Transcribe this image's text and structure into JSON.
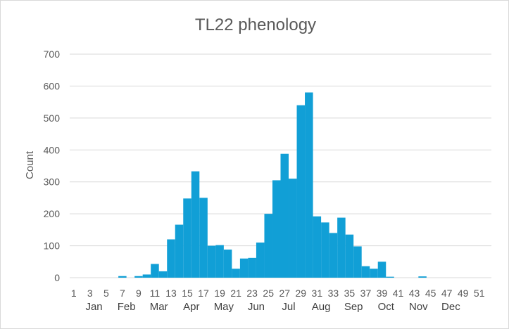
{
  "chart_data": {
    "type": "bar",
    "title": "TL22 phenology",
    "xlabel": "",
    "ylabel": "Count",
    "ylim": [
      0,
      700
    ],
    "yticks": [
      0,
      100,
      200,
      300,
      400,
      500,
      600,
      700
    ],
    "grid": true,
    "legend": "none",
    "bar_color": "#119fd6",
    "x_tick_labels": [
      "1",
      "3",
      "5",
      "7",
      "9",
      "11",
      "13",
      "15",
      "17",
      "19",
      "21",
      "23",
      "25",
      "27",
      "29",
      "31",
      "33",
      "35",
      "37",
      "39",
      "41",
      "43",
      "45",
      "47",
      "49",
      "51"
    ],
    "month_labels": [
      "Jan",
      "Feb",
      "Mar",
      "Apr",
      "May",
      "Jun",
      "Jul",
      "Aug",
      "Sep",
      "Oct",
      "Nov",
      "Dec"
    ],
    "categories": [
      1,
      2,
      3,
      4,
      5,
      6,
      7,
      8,
      9,
      10,
      11,
      12,
      13,
      14,
      15,
      16,
      17,
      18,
      19,
      20,
      21,
      22,
      23,
      24,
      25,
      26,
      27,
      28,
      29,
      30,
      31,
      32,
      33,
      34,
      35,
      36,
      37,
      38,
      39,
      40,
      41,
      42,
      43,
      44,
      45,
      46,
      47,
      48,
      49,
      50,
      51,
      52
    ],
    "values": [
      0,
      0,
      0,
      0,
      0,
      0,
      5,
      0,
      5,
      10,
      43,
      20,
      120,
      166,
      248,
      333,
      250,
      100,
      102,
      88,
      28,
      60,
      62,
      110,
      200,
      305,
      388,
      310,
      540,
      580,
      192,
      173,
      140,
      188,
      135,
      98,
      36,
      28,
      50,
      3,
      0,
      0,
      0,
      4,
      0,
      0,
      0,
      0,
      0,
      0,
      0,
      0
    ]
  }
}
